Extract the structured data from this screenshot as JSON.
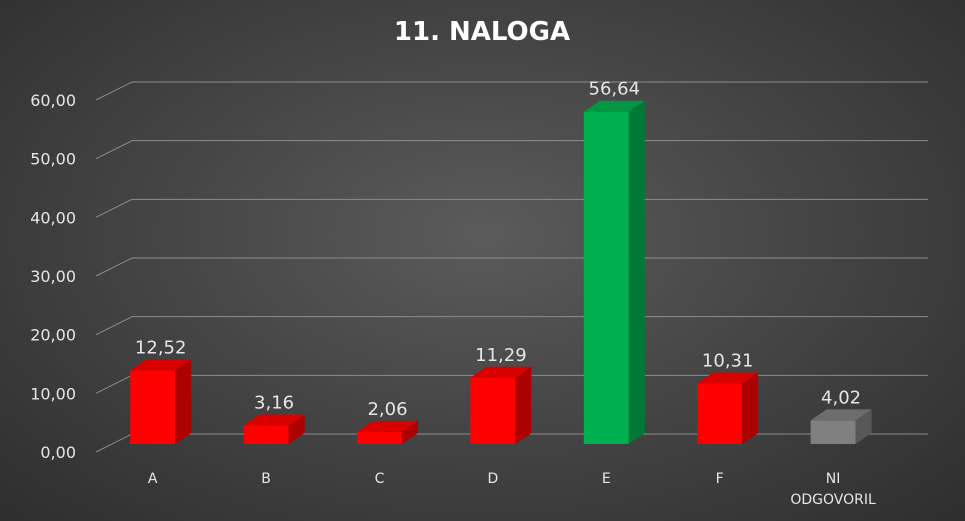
{
  "chart_data": {
    "type": "bar",
    "title": "11. NALOGA",
    "xlabel": "",
    "ylabel": "",
    "categories": [
      "A",
      "B",
      "C",
      "D",
      "E",
      "F",
      "NI ODGOVORIL"
    ],
    "category_lines": [
      [
        "A"
      ],
      [
        "B"
      ],
      [
        "C"
      ],
      [
        "D"
      ],
      [
        "E"
      ],
      [
        "F"
      ],
      [
        "NI",
        "ODGOVORIL"
      ]
    ],
    "values": [
      12.52,
      3.16,
      2.06,
      11.29,
      56.64,
      10.31,
      4.02
    ],
    "data_labels": [
      "12,52",
      "3,16",
      "2,06",
      "11,29",
      "56,64",
      "10,31",
      "4,02"
    ],
    "ylim": [
      0,
      60
    ],
    "ytick_values": [
      0,
      10,
      20,
      30,
      40,
      50,
      60
    ],
    "ytick_labels": [
      "0,00",
      "10,00",
      "20,00",
      "30,00",
      "40,00",
      "50,00",
      "60,00"
    ],
    "grid": true,
    "legend": "none",
    "colors": {
      "incorrect": "#ff0000",
      "correct": "#00b050",
      "no_answer": "#808080",
      "gridline": "#8c8c8c",
      "text": "#e6e6e6"
    },
    "bar_color_keys": [
      "incorrect",
      "incorrect",
      "incorrect",
      "incorrect",
      "correct",
      "incorrect",
      "no_answer"
    ]
  }
}
